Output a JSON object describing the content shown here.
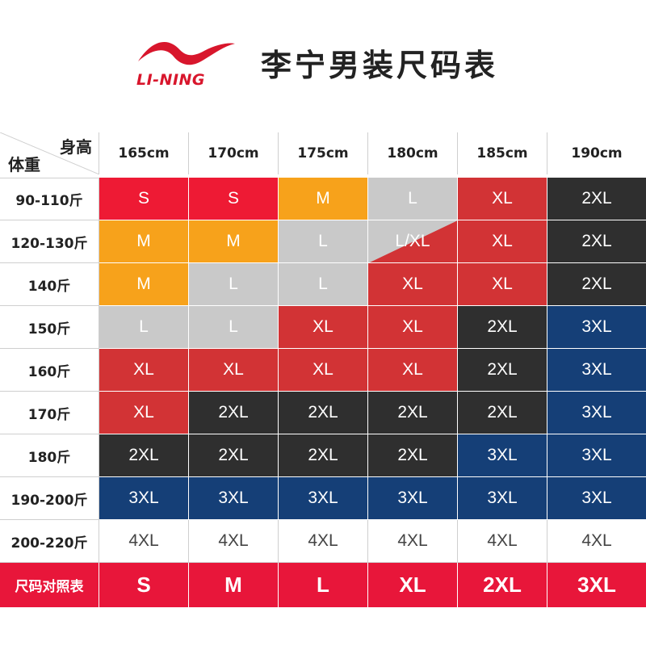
{
  "brand": {
    "logo_text": "LI-NING",
    "logo_icon": "li-ning-swoosh-logo"
  },
  "title": "李宁男装尺码表",
  "colors": {
    "S": "#ee1a34",
    "M": "#f7a21b",
    "L": "#c9c9c9",
    "XL": "#d23335",
    "2XL": "#2f2f2f",
    "3XL": "#153f77",
    "4XL": "#ffffff",
    "brand_red": "#e8163a"
  },
  "table": {
    "corner_height_label": "身高",
    "corner_weight_label": "体重",
    "heights": [
      "165cm",
      "170cm",
      "175cm",
      "180cm",
      "185cm",
      "190cm"
    ],
    "rows": [
      {
        "weight": "90-110斤",
        "sizes": [
          "S",
          "S",
          "M",
          "L",
          "XL",
          "2XL"
        ]
      },
      {
        "weight": "120-130斤",
        "sizes": [
          "M",
          "M",
          "L",
          "L/XL",
          "XL",
          "2XL"
        ]
      },
      {
        "weight": "140斤",
        "sizes": [
          "M",
          "L",
          "L",
          "XL",
          "XL",
          "2XL"
        ]
      },
      {
        "weight": "150斤",
        "sizes": [
          "L",
          "L",
          "XL",
          "XL",
          "2XL",
          "3XL"
        ]
      },
      {
        "weight": "160斤",
        "sizes": [
          "XL",
          "XL",
          "XL",
          "XL",
          "2XL",
          "3XL"
        ]
      },
      {
        "weight": "170斤",
        "sizes": [
          "XL",
          "2XL",
          "2XL",
          "2XL",
          "2XL",
          "3XL"
        ]
      },
      {
        "weight": "180斤",
        "sizes": [
          "2XL",
          "2XL",
          "2XL",
          "2XL",
          "3XL",
          "3XL"
        ]
      },
      {
        "weight": "190-200斤",
        "sizes": [
          "3XL",
          "3XL",
          "3XL",
          "3XL",
          "3XL",
          "3XL"
        ]
      },
      {
        "weight": "200-220斤",
        "sizes": [
          "4XL",
          "4XL",
          "4XL",
          "4XL",
          "4XL",
          "4XL"
        ]
      }
    ]
  },
  "legend": {
    "label": "尺码对照表",
    "sizes": [
      "S",
      "M",
      "L",
      "XL",
      "2XL",
      "3XL"
    ]
  }
}
